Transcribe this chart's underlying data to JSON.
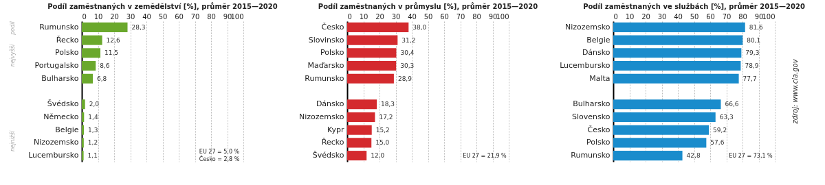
{
  "chart_data": [
    {
      "type": "bar",
      "orientation": "horizontal",
      "title": "Podíl zaměstnaných v zemědělství [%], průměr 2015—2020",
      "categories": [
        "Rumunsko",
        "Řecko",
        "Polsko",
        "Portugalsko",
        "Bulharsko",
        null,
        "Švédsko",
        "Německo",
        "Belgie",
        "Nizozemsko",
        "Lucembursko"
      ],
      "values": [
        28.3,
        12.6,
        11.5,
        8.6,
        6.8,
        null,
        2.0,
        1.4,
        1.3,
        1.2,
        1.1
      ],
      "value_labels": [
        "28,3",
        "12,6",
        "11,5",
        "8,6",
        "6,8",
        null,
        "2,0",
        "1,4",
        "1,3",
        "1,2",
        "1,1"
      ],
      "color": "#6aa82c",
      "xlim": [
        0,
        100
      ],
      "xticks": [
        0,
        10,
        20,
        30,
        40,
        50,
        60,
        70,
        80,
        90,
        100
      ],
      "grid": "x",
      "annotations": [
        "podíl",
        "nejvyšší",
        "nejnižší",
        "EU 27 = 5,0 %",
        "Česko = 2,8 %"
      ]
    },
    {
      "type": "bar",
      "orientation": "horizontal",
      "title": "Podíl zaměstnaných v průmyslu [%], průměr 2015—2020",
      "categories": [
        "Česko",
        "Slovinsko",
        "Polsko",
        "Maďarsko",
        "Rumunsko",
        null,
        "Dánsko",
        "Nizozemsko",
        "Kypr",
        "Řecko",
        "Švédsko"
      ],
      "values": [
        38.0,
        31.2,
        30.4,
        30.3,
        28.9,
        null,
        18.3,
        17.2,
        15.2,
        15.0,
        12.0
      ],
      "value_labels": [
        "38,0",
        "31,2",
        "30,4",
        "30,3",
        "28,9",
        null,
        "18,3",
        "17,2",
        "15,2",
        "15,0",
        "12,0"
      ],
      "color": "#d42a2e",
      "xlim": [
        0,
        100
      ],
      "xticks": [
        0,
        10,
        20,
        30,
        40,
        50,
        60,
        70,
        80,
        90,
        100
      ],
      "grid": "x",
      "annotations": [
        "EU 27 = 21,9 %"
      ]
    },
    {
      "type": "bar",
      "orientation": "horizontal",
      "title": "Podíl zaměstnaných ve službách [%], průměr 2015—2020",
      "categories": [
        "Nizozemsko",
        "Belgie",
        "Dánsko",
        "Lucembursko",
        "Malta",
        null,
        "Bulharsko",
        "Slovensko",
        "Česko",
        "Polsko",
        "Rumunsko"
      ],
      "values": [
        81.6,
        80.1,
        79.3,
        78.9,
        77.7,
        null,
        66.6,
        63.3,
        59.2,
        57.6,
        42.8
      ],
      "value_labels": [
        "81,6",
        "80,1",
        "79,3",
        "78,9",
        "77,7",
        null,
        "66,6",
        "63,3",
        "59,2",
        "57,6",
        "42,8"
      ],
      "color": "#1a8ccc",
      "xlim": [
        0,
        100
      ],
      "xticks": [
        0,
        10,
        20,
        30,
        40,
        50,
        60,
        70,
        80,
        90,
        100
      ],
      "grid": "x",
      "annotations": [
        "EU 27 = 73,1 %",
        "zdroj: www.cia.gov"
      ]
    }
  ]
}
